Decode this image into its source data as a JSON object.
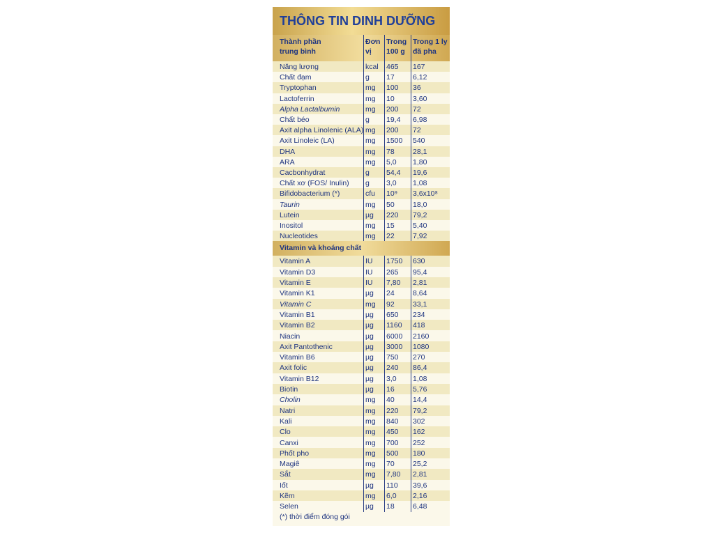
{
  "title": "THÔNG TIN DINH DƯỠNG",
  "table": {
    "header": [
      [
        "Thành phần",
        "trung bình"
      ],
      [
        "Đơn",
        "vị"
      ],
      [
        "Trong",
        "100 g"
      ],
      [
        "Trong 1 ly",
        "đã pha"
      ]
    ],
    "rows": [
      [
        "Năng lượng",
        "kcal",
        "465",
        "167"
      ],
      [
        "Chất đạm",
        "g",
        "17",
        "6,12"
      ],
      [
        "Tryptophan",
        "mg",
        "100",
        "36"
      ],
      [
        "Lactoferrin",
        "mg",
        "10",
        "3,60"
      ],
      [
        "Alpha Lactalbumin",
        "mg",
        "200",
        "72"
      ],
      [
        "Chất béo",
        "g",
        "19,4",
        "6,98"
      ],
      [
        "Axit alpha Linolenic (ALA)",
        "mg",
        "200",
        "72"
      ],
      [
        "Axit Linoleic (LA)",
        "mg",
        "1500",
        "540"
      ],
      [
        "DHA",
        "mg",
        "78",
        "28,1"
      ],
      [
        "ARA",
        "mg",
        "5,0",
        "1,80"
      ],
      [
        "Cacbonhydrat",
        "g",
        "54,4",
        "19,6"
      ],
      [
        "Chất xơ (FOS/ Inulin)",
        "g",
        "3,0",
        "1,08"
      ],
      [
        "Bifidobacterium (*)",
        "cfu",
        "10⁹",
        "3,6x10⁸"
      ],
      [
        "Taurin",
        "mg",
        "50",
        "18,0"
      ],
      [
        "Lutein",
        "µg",
        "220",
        "79,2"
      ],
      [
        "Inositol",
        "mg",
        "15",
        "5,40"
      ],
      [
        "Nucleotides",
        "mg",
        "22",
        "7,92"
      ]
    ],
    "section_title": "Vitamin và khoáng chất",
    "section_rows": [
      [
        "Vitamin A",
        "IU",
        "1750",
        "630"
      ],
      [
        "Vitamin D3",
        "IU",
        "265",
        "95,4"
      ],
      [
        "Vitamin E",
        "IU",
        "7,80",
        "2,81"
      ],
      [
        "Vitamin K1",
        "µg",
        "24",
        "8,64"
      ],
      [
        "Vitamin C",
        "mg",
        "92",
        "33,1"
      ],
      [
        "Vitamin B1",
        "µg",
        "650",
        "234"
      ],
      [
        "Vitamin B2",
        "µg",
        "1160",
        "418"
      ],
      [
        "Niacin",
        "µg",
        "6000",
        "2160"
      ],
      [
        "Axit Pantothenic",
        "µg",
        "3000",
        "1080"
      ],
      [
        "Vitamin B6",
        "µg",
        "750",
        "270"
      ],
      [
        "Axit folic",
        "µg",
        "240",
        "86,4"
      ],
      [
        "Vitamin B12",
        "µg",
        "3,0",
        "1,08"
      ],
      [
        "Biotin",
        "µg",
        "16",
        "5,76"
      ],
      [
        "Cholin",
        "mg",
        "40",
        "14,4"
      ],
      [
        "Natri",
        "mg",
        "220",
        "79,2"
      ],
      [
        "Kali",
        "mg",
        "840",
        "302"
      ],
      [
        "Clo",
        "mg",
        "450",
        "162"
      ],
      [
        "Canxi",
        "mg",
        "700",
        "252"
      ],
      [
        "Phốt pho",
        "mg",
        "500",
        "180"
      ],
      [
        "Magiê",
        "mg",
        "70",
        "25,2"
      ],
      [
        "Sắt",
        "mg",
        "7,80",
        "2,81"
      ],
      [
        "Iốt",
        "µg",
        "110",
        "39,6"
      ],
      [
        "Kẽm",
        "mg",
        "6,0",
        "2,16"
      ],
      [
        "Selen",
        "µg",
        "18",
        "6,48"
      ]
    ]
  },
  "footnote": "(*) thời điểm đóng gói"
}
